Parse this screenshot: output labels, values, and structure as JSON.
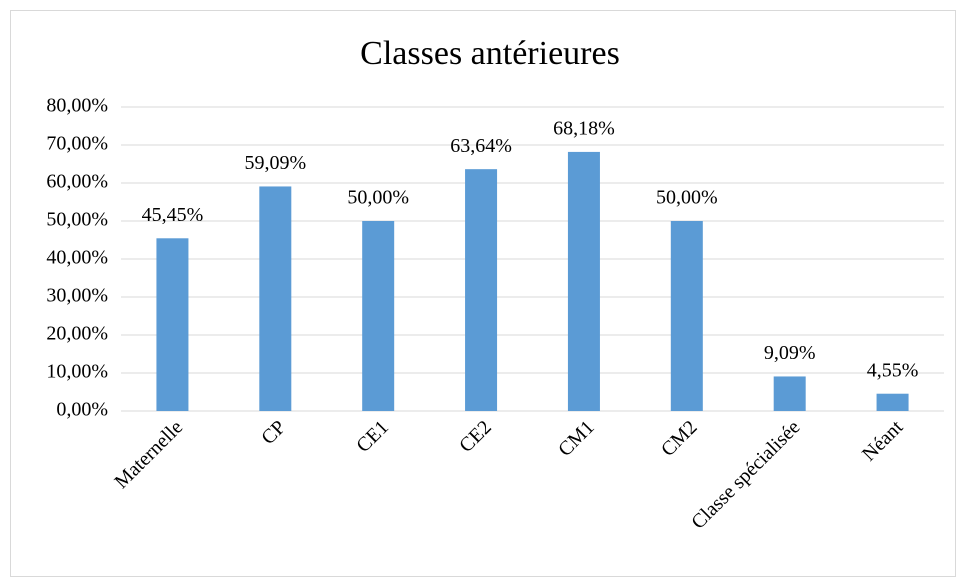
{
  "chart_data": {
    "type": "bar",
    "title": "Classes antérieures",
    "categories": [
      "Maternelle",
      "CP",
      "CE1",
      "CE2",
      "CM1",
      "CM2",
      "Classe spécialisée",
      "Néant"
    ],
    "values": [
      45.45,
      59.09,
      50.0,
      63.64,
      68.18,
      50.0,
      9.09,
      4.55
    ],
    "value_labels": [
      "45,45%",
      "59,09%",
      "50,00%",
      "63,64%",
      "68,18%",
      "50,00%",
      "9,09%",
      "4,55%"
    ],
    "color": "#5b9bd5",
    "ylim": [
      0,
      80
    ],
    "yticks": [
      {
        "value": 0,
        "label": "0,00%"
      },
      {
        "value": 10,
        "label": "10,00%"
      },
      {
        "value": 20,
        "label": "20,00%"
      },
      {
        "value": 30,
        "label": "30,00%"
      },
      {
        "value": 40,
        "label": "40,00%"
      },
      {
        "value": 50,
        "label": "50,00%"
      },
      {
        "value": 60,
        "label": "60,00%"
      },
      {
        "value": 70,
        "label": "70,00%"
      },
      {
        "value": 80,
        "label": "80,00%"
      }
    ],
    "grid": true
  }
}
